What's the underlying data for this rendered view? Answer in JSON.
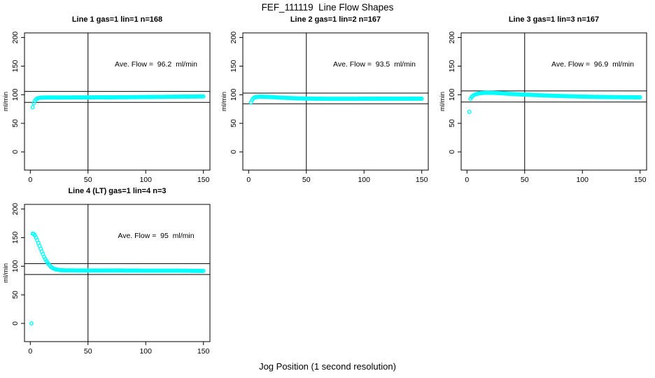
{
  "page": {
    "title": "FEF_111119  Line Flow Shapes",
    "xlabel": "Jog Position (1 second resolution)"
  },
  "chart_data": [
    {
      "type": "scatter",
      "title": "Line 1 gas=1 lin=1 n=168",
      "annotation": "Ave. Flow =  96.2  ml/min",
      "ave_flow": 96.2,
      "ylabel": "ml/min",
      "xticks": [
        0,
        50,
        100,
        150
      ],
      "yticks": [
        0,
        50,
        100,
        150,
        200
      ],
      "xlim": [
        0,
        150
      ],
      "ylim": [
        0,
        200
      ],
      "vline_x": 50,
      "hlines": [
        105.8,
        86.6
      ],
      "point_color": "#00FFFF",
      "x_step": 1,
      "outliers": [
        [
          2,
          78
        ]
      ],
      "curve": [
        [
          3,
          85
        ],
        [
          4,
          89.5
        ],
        [
          5,
          92
        ],
        [
          6,
          93.5
        ],
        [
          8,
          94.5
        ],
        [
          10,
          95
        ],
        [
          15,
          95.2
        ],
        [
          20,
          95.2
        ],
        [
          30,
          95.2
        ],
        [
          40,
          95.3
        ],
        [
          50,
          95.3
        ],
        [
          60,
          95.5
        ],
        [
          70,
          95.5
        ],
        [
          80,
          95.6
        ],
        [
          90,
          95.8
        ],
        [
          100,
          96
        ],
        [
          110,
          96.2
        ],
        [
          120,
          96.4
        ],
        [
          130,
          96.6
        ],
        [
          140,
          96.8
        ],
        [
          150,
          97
        ]
      ]
    },
    {
      "type": "scatter",
      "title": "Line 2 gas=1 lin=2 n=167",
      "annotation": "Ave. Flow =  93.5  ml/min",
      "ave_flow": 93.5,
      "ylabel": "ml/min",
      "xticks": [
        0,
        50,
        100,
        150
      ],
      "yticks": [
        0,
        50,
        100,
        150,
        200
      ],
      "xlim": [
        0,
        150
      ],
      "ylim": [
        0,
        200
      ],
      "vline_x": 50,
      "hlines": [
        102.9,
        84.2
      ],
      "point_color": "#00FFFF",
      "x_step": 1,
      "outliers": [],
      "curve": [
        [
          2,
          86.5
        ],
        [
          3,
          91
        ],
        [
          4,
          93.5
        ],
        [
          5,
          95
        ],
        [
          6,
          95.8
        ],
        [
          8,
          96.3
        ],
        [
          10,
          96.5
        ],
        [
          12,
          96.5
        ],
        [
          15,
          96.3
        ],
        [
          20,
          95.8
        ],
        [
          25,
          95.2
        ],
        [
          30,
          94.7
        ],
        [
          35,
          94.2
        ],
        [
          40,
          93.8
        ],
        [
          45,
          93.5
        ],
        [
          50,
          93.3
        ],
        [
          60,
          93
        ],
        [
          70,
          92.9
        ],
        [
          80,
          92.9
        ],
        [
          90,
          92.9
        ],
        [
          100,
          93
        ],
        [
          110,
          93
        ],
        [
          120,
          93
        ],
        [
          130,
          93
        ],
        [
          140,
          93
        ],
        [
          150,
          93
        ]
      ]
    },
    {
      "type": "scatter",
      "title": "Line 3 gas=1 lin=3 n=167",
      "annotation": "Ave. Flow =  96.9  ml/min",
      "ave_flow": 96.9,
      "ylabel": "ml/min",
      "xticks": [
        0,
        50,
        100,
        150
      ],
      "yticks": [
        0,
        50,
        100,
        150,
        200
      ],
      "xlim": [
        0,
        150
      ],
      "ylim": [
        0,
        200
      ],
      "vline_x": 50,
      "hlines": [
        106.6,
        87.2
      ],
      "point_color": "#00FFFF",
      "x_step": 1,
      "outliers": [
        [
          2,
          70
        ]
      ],
      "curve": [
        [
          3,
          92.5
        ],
        [
          4,
          96
        ],
        [
          5,
          98
        ],
        [
          6,
          99.5
        ],
        [
          8,
          101
        ],
        [
          10,
          102
        ],
        [
          12,
          102.8
        ],
        [
          15,
          103.3
        ],
        [
          18,
          103.5
        ],
        [
          22,
          103.3
        ],
        [
          26,
          103
        ],
        [
          30,
          102.5
        ],
        [
          35,
          101.8
        ],
        [
          40,
          101.2
        ],
        [
          45,
          100.6
        ],
        [
          50,
          100.2
        ],
        [
          60,
          99.3
        ],
        [
          70,
          98.5
        ],
        [
          80,
          97.8
        ],
        [
          90,
          97.2
        ],
        [
          100,
          96.7
        ],
        [
          110,
          96.3
        ],
        [
          120,
          96
        ],
        [
          130,
          95.8
        ],
        [
          140,
          95.6
        ],
        [
          150,
          95.5
        ]
      ]
    },
    {
      "type": "scatter",
      "title": "Line 4 (LT) gas=1 lin=4 n=3",
      "annotation": "Ave. Flow =  95  ml/min",
      "ave_flow": 95,
      "ylabel": "ml/min",
      "xticks": [
        0,
        50,
        100,
        150
      ],
      "yticks": [
        0,
        50,
        100,
        150,
        200
      ],
      "xlim": [
        0,
        150
      ],
      "ylim": [
        0,
        200
      ],
      "vline_x": 50,
      "hlines": [
        104.5,
        85.5
      ],
      "point_color": "#00FFFF",
      "x_step": 1,
      "outliers": [
        [
          1,
          0
        ]
      ],
      "curve": [
        [
          2,
          157
        ],
        [
          3,
          156.5
        ],
        [
          4,
          154
        ],
        [
          5,
          150
        ],
        [
          6,
          145.5
        ],
        [
          7,
          140.5
        ],
        [
          8,
          135.5
        ],
        [
          9,
          130.5
        ],
        [
          10,
          125.5
        ],
        [
          11,
          121
        ],
        [
          12,
          116.5
        ],
        [
          13,
          112.5
        ],
        [
          14,
          109
        ],
        [
          15,
          106
        ],
        [
          16,
          103.3
        ],
        [
          17,
          101
        ],
        [
          18,
          99
        ],
        [
          19,
          97.3
        ],
        [
          20,
          96
        ],
        [
          22,
          94.5
        ],
        [
          24,
          93.7
        ],
        [
          26,
          93.2
        ],
        [
          28,
          93
        ],
        [
          30,
          92.8
        ],
        [
          40,
          92.6
        ],
        [
          50,
          92.6
        ],
        [
          60,
          92.6
        ],
        [
          70,
          92.5
        ],
        [
          80,
          92.5
        ],
        [
          90,
          92.4
        ],
        [
          100,
          92.3
        ],
        [
          110,
          92.3
        ],
        [
          120,
          92.2
        ],
        [
          130,
          92.2
        ],
        [
          140,
          92
        ],
        [
          150,
          91.8
        ]
      ]
    }
  ]
}
